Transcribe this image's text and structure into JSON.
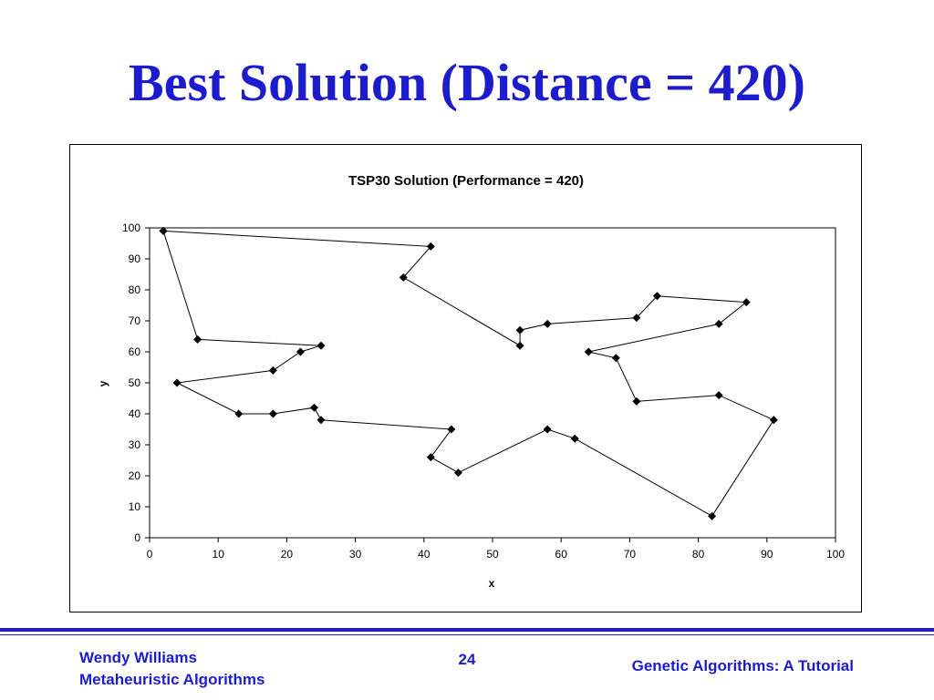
{
  "slide": {
    "title": "Best Solution (Distance = 420)",
    "title_color": "#1c1ccc"
  },
  "footer": {
    "author": "Wendy Williams",
    "course": "Metaheuristic Algorithms",
    "page_number": "24",
    "topic": "Genetic Algorithms: A Tutorial",
    "color": "#1c1ccc"
  },
  "chart_data": {
    "type": "line",
    "title": "TSP30 Solution (Performance = 420)",
    "xlabel": "x",
    "ylabel": "y",
    "xlim": [
      0,
      100
    ],
    "ylim": [
      0,
      100
    ],
    "x_ticks": [
      0,
      10,
      20,
      30,
      40,
      50,
      60,
      70,
      80,
      90,
      100
    ],
    "y_ticks": [
      0,
      10,
      20,
      30,
      40,
      50,
      60,
      70,
      80,
      90,
      100
    ],
    "grid": false,
    "legend": "none",
    "marker": "diamond",
    "line_color": "#000000",
    "marker_color": "#000000",
    "series": [
      {
        "x": [
          2,
          41,
          37,
          54,
          54,
          58,
          71,
          74,
          87,
          83,
          64,
          68,
          71,
          83,
          91,
          82,
          62,
          58,
          45,
          41,
          44,
          25,
          24,
          18,
          13,
          4,
          18,
          22,
          25,
          7,
          2
        ],
        "y": [
          99,
          94,
          84,
          62,
          67,
          69,
          71,
          78,
          76,
          69,
          60,
          58,
          44,
          46,
          38,
          7,
          32,
          35,
          21,
          26,
          35,
          38,
          42,
          40,
          40,
          50,
          54,
          60,
          62,
          64,
          99
        ]
      }
    ]
  }
}
